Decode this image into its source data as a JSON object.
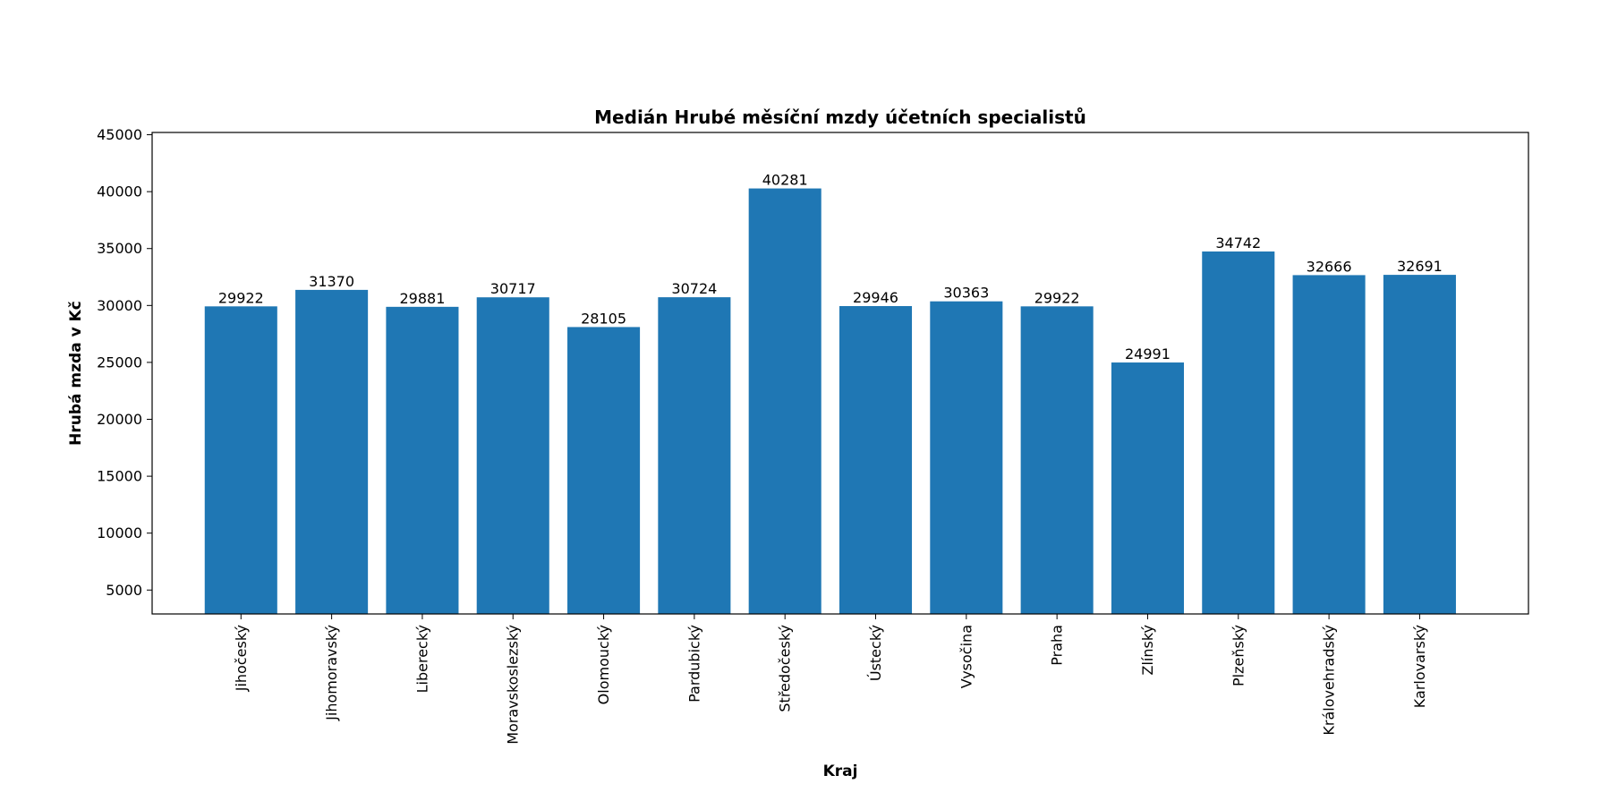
{
  "chart_data": {
    "type": "bar",
    "title": "Medián Hrubé měsíční mzdy účetních specialistů",
    "xlabel": "Kraj",
    "ylabel": "Hrubá mzda v Kč",
    "categories": [
      "Jihočeský",
      "Jihomoravský",
      "Liberecký",
      "Moravskoslezský",
      "Olomoucký",
      "Pardubický",
      "Středočeský",
      "Ústecký",
      "Vysočina",
      "Praha",
      "Zlínský",
      "Plzeňský",
      "Královehradský",
      "Karlovarský"
    ],
    "values": [
      29922,
      31370,
      29881,
      30717,
      28105,
      30724,
      40281,
      29946,
      30363,
      29922,
      24991,
      34742,
      32666,
      32691
    ],
    "data_labels": [
      "29922",
      "31370",
      "29881",
      "30717",
      "28105",
      "30724",
      "40281",
      "29946",
      "30363",
      "29922",
      "24991",
      "34742",
      "32666",
      "32691"
    ],
    "yticks": [
      5000,
      10000,
      15000,
      20000,
      25000,
      30000,
      35000,
      40000,
      45000
    ],
    "ytick_labels": [
      "5000",
      "10000",
      "15000",
      "20000",
      "25000",
      "30000",
      "35000",
      "40000",
      "45000"
    ],
    "ylim": [
      2900,
      45200
    ],
    "xlim": [
      -0.98,
      14.2
    ],
    "bar_color": "#1f77b4",
    "grid": false,
    "legend": "none"
  }
}
